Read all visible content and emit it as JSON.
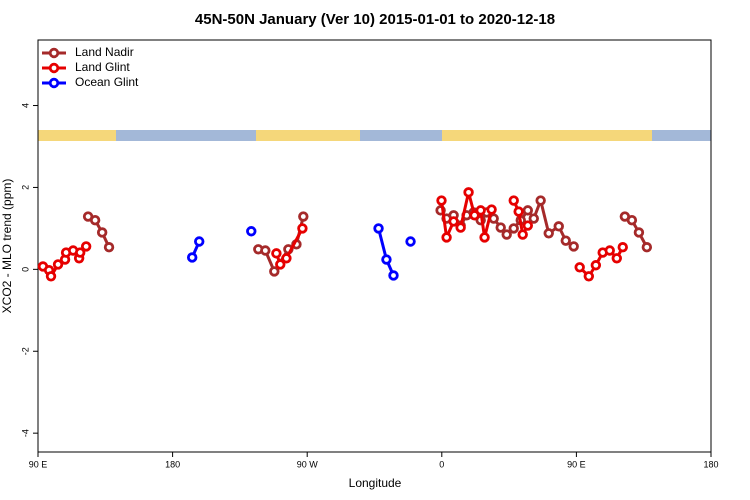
{
  "chart_data": {
    "type": "line",
    "title": "45N-50N January (Ver 10)   2015-01-01 to 2020-12-18",
    "x_label": "Longitude",
    "y_label": "XCO2 - MLO trend (ppm)",
    "xlim": [
      90,
      540
    ],
    "xticks": [
      {
        "value": 90,
        "label": "90 E"
      },
      180,
      {
        "value": 270,
        "label": "90 W"
      },
      {
        "value": 360,
        "label": "0"
      },
      {
        "value": 450,
        "label": "90 E"
      },
      {
        "value": 540,
        "label": "180"
      }
    ],
    "ylim": [
      -4.46,
      5.6
    ],
    "yticks": [
      4,
      2,
      0,
      -2,
      -4
    ],
    "legend": "top-left",
    "series": [
      {
        "name": "Land Nadir",
        "color": "#a52a2a",
        "x": [
          123.5,
          128.2,
          132.9,
          137.5,
          null,
          237.3,
          242.0,
          248.0,
          257.4,
          262.8,
          267.4,
          null,
          359.2,
          363.2,
          367.9,
          372.6,
          376.6,
          381.3,
          386.0,
          390.0,
          394.7,
          399.4,
          403.4,
          408.1,
          412.8,
          417.5,
          421.5,
          426.1,
          431.5,
          438.2,
          442.9,
          448.2,
          null,
          482.4,
          487.1,
          491.8,
          497.1
        ],
        "values": [
          1.29,
          1.2,
          0.9,
          0.54,
          null,
          0.49,
          0.46,
          -0.05,
          0.49,
          0.61,
          1.29,
          null,
          1.44,
          1.24,
          1.32,
          1.07,
          1.32,
          1.39,
          1.2,
          1.39,
          1.24,
          1.02,
          0.85,
          1.0,
          1.2,
          1.44,
          1.24,
          1.68,
          0.88,
          1.05,
          0.7,
          0.56,
          null,
          1.29,
          1.2,
          0.9,
          0.54
        ]
      },
      {
        "name": "Land Glint",
        "color": "#e60000",
        "x": [
          93.3,
          97.4,
          98.7,
          103.4,
          108.1,
          108.8,
          113.5,
          117.5,
          118.2,
          122.2,
          null,
          249.4,
          252.0,
          256.1,
          266.8,
          null,
          359.8,
          363.2,
          367.9,
          372.6,
          377.9,
          381.9,
          386.0,
          388.6,
          393.3,
          null,
          408.1,
          411.4,
          414.1,
          417.5,
          null,
          452.2,
          458.3,
          463.0,
          467.6,
          472.3,
          477.0,
          481.0
        ],
        "values": [
          0.07,
          -0.02,
          -0.17,
          0.12,
          0.24,
          0.41,
          0.46,
          0.27,
          0.41,
          0.56,
          null,
          0.39,
          0.12,
          0.27,
          1.0,
          null,
          1.68,
          0.78,
          1.17,
          1.02,
          1.88,
          1.32,
          1.44,
          0.78,
          1.46,
          null,
          1.68,
          1.41,
          0.85,
          1.07,
          null,
          0.05,
          -0.17,
          0.1,
          0.41,
          0.46,
          0.27,
          0.54
        ]
      },
      {
        "name": "Ocean Glint",
        "color": "#0000ff",
        "x": [
          193.1,
          197.8,
          null,
          232.6,
          null,
          317.7,
          323.0,
          327.7,
          null,
          339.1
        ],
        "values": [
          0.29,
          0.68,
          null,
          0.93,
          null,
          1.0,
          0.24,
          -0.15,
          null,
          0.68
        ]
      }
    ]
  }
}
